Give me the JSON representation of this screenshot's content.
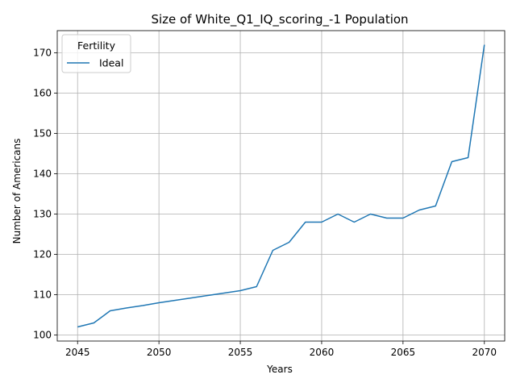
{
  "chart_data": {
    "type": "line",
    "title": "Size of White_Q1_IQ_scoring_-1 Population",
    "xlabel": "Years",
    "ylabel": "Number of Americans",
    "xlim": [
      2043.75,
      2071.25
    ],
    "ylim": [
      98.5,
      175.5
    ],
    "xticks": [
      2045,
      2050,
      2055,
      2060,
      2065,
      2070
    ],
    "yticks": [
      100,
      110,
      120,
      130,
      140,
      150,
      160,
      170
    ],
    "grid": true,
    "legend": {
      "title": "Fertility",
      "position": "top-left"
    },
    "series": [
      {
        "name": "Ideal",
        "color": "#1f77b4",
        "x": [
          2045,
          2046,
          2047,
          2048,
          2049,
          2050,
          2051,
          2052,
          2053,
          2054,
          2055,
          2056,
          2057,
          2058,
          2059,
          2060,
          2061,
          2062,
          2063,
          2064,
          2065,
          2066,
          2067,
          2068,
          2069,
          2070
        ],
        "y": [
          102,
          103,
          106,
          106.7,
          107.3,
          108,
          108.6,
          109.2,
          109.8,
          110.4,
          111,
          112,
          121,
          123,
          128,
          128,
          130,
          128,
          130,
          129,
          129,
          131,
          132,
          143,
          144,
          172
        ]
      }
    ]
  }
}
